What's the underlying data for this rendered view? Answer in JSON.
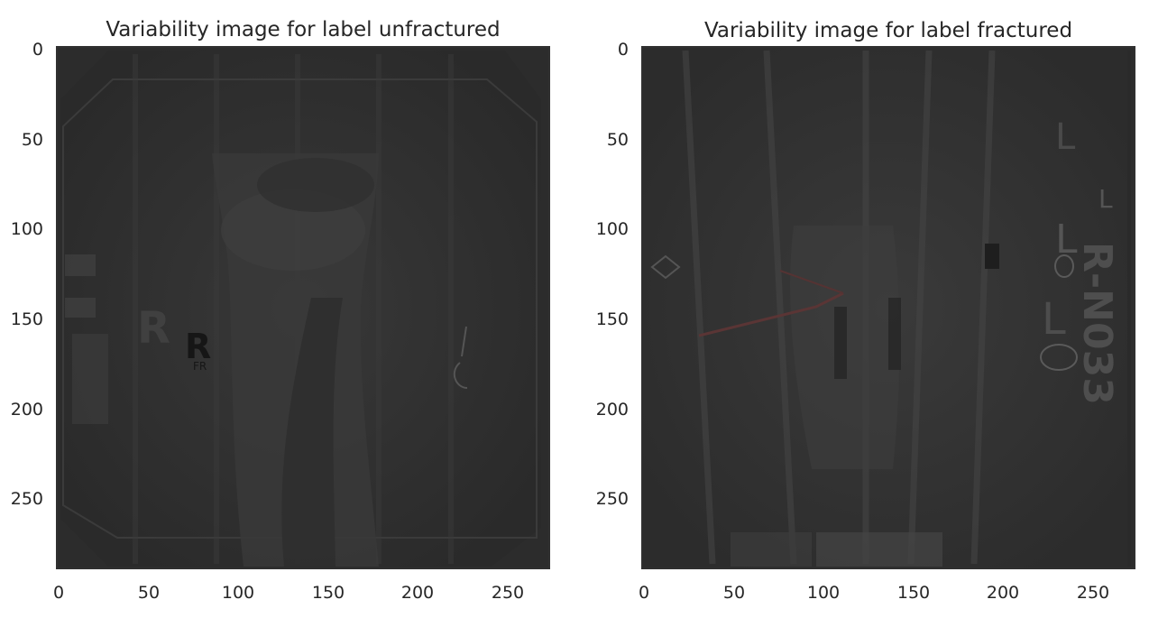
{
  "chart_data": [
    {
      "type": "heatmap",
      "title": "Variability image for label unfractured",
      "xlabel": "",
      "ylabel": "",
      "xlim": [
        0,
        274
      ],
      "ylim": [
        290,
        0
      ],
      "xticks": [
        0,
        50,
        100,
        150,
        200,
        250
      ],
      "yticks": [
        0,
        50,
        100,
        150,
        200,
        250
      ],
      "grid": false,
      "colormap": "grayscale",
      "image_annotations": [
        "R",
        "R",
        "FR"
      ]
    },
    {
      "type": "heatmap",
      "title": "Variability image for label fractured",
      "xlabel": "",
      "ylabel": "",
      "xlim": [
        0,
        274
      ],
      "ylim": [
        290,
        0
      ],
      "xticks": [
        0,
        50,
        100,
        150,
        200,
        250
      ],
      "yticks": [
        0,
        50,
        100,
        150,
        200,
        250
      ],
      "grid": false,
      "colormap": "grayscale",
      "image_annotations": [
        "L",
        "L",
        "L",
        "L",
        "R-N033"
      ]
    }
  ],
  "colors": {
    "background": "#ffffff",
    "image_base": "#2b2b2b",
    "image_frame": "#303030",
    "text": "#262626"
  }
}
